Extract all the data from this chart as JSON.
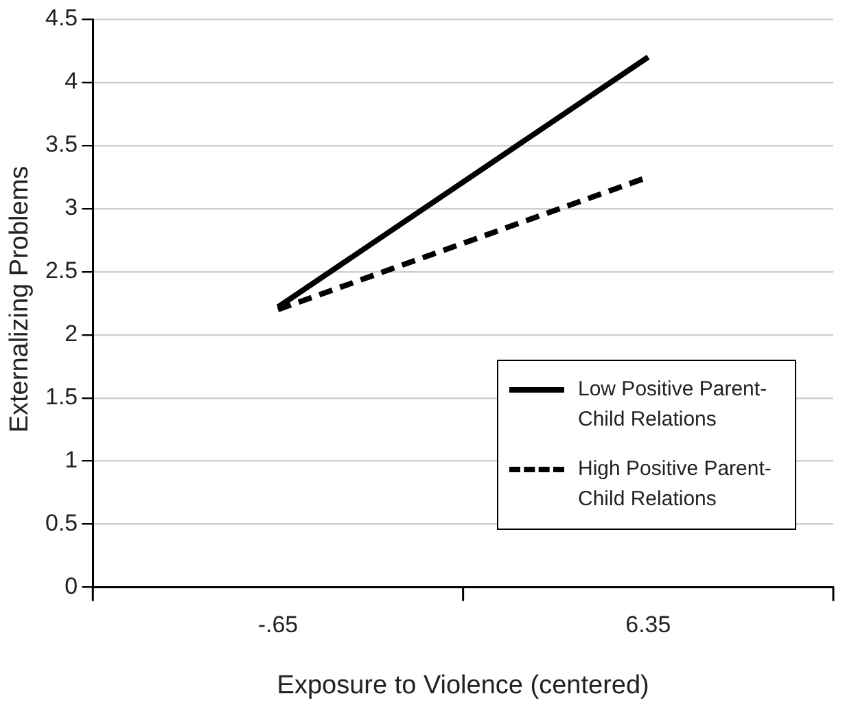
{
  "chart_data": {
    "type": "line",
    "xlabel": "Exposure to Violence (centered)",
    "ylabel": "Externalizing Problems",
    "x": [
      -0.65,
      6.35
    ],
    "series": [
      {
        "name": "Low Positive Parent-Child Relations",
        "color": "#000000",
        "values": [
          2.22,
          4.2
        ]
      },
      {
        "name": "High Positive Parent-Child Relations",
        "color": "#000000",
        "values": [
          2.2,
          3.25
        ],
        "line_style": "dashed"
      }
    ],
    "xlim": [
      -4.15,
      9.85
    ],
    "xticks": [
      {
        "value": -4.15,
        "label": null
      },
      {
        "value": -0.65,
        "label": "-.65"
      },
      {
        "value": 2.85,
        "label": null
      },
      {
        "value": 6.35,
        "label": "6.35"
      },
      {
        "value": 9.85,
        "label": null
      }
    ],
    "ylim": [
      0,
      4.5
    ],
    "yticks": [
      0,
      0.5,
      1,
      1.5,
      2,
      2.5,
      3,
      3.5,
      4,
      4.5
    ],
    "grid": "y",
    "legend": "bottom right",
    "marker": "none",
    "line_style": "solid"
  }
}
